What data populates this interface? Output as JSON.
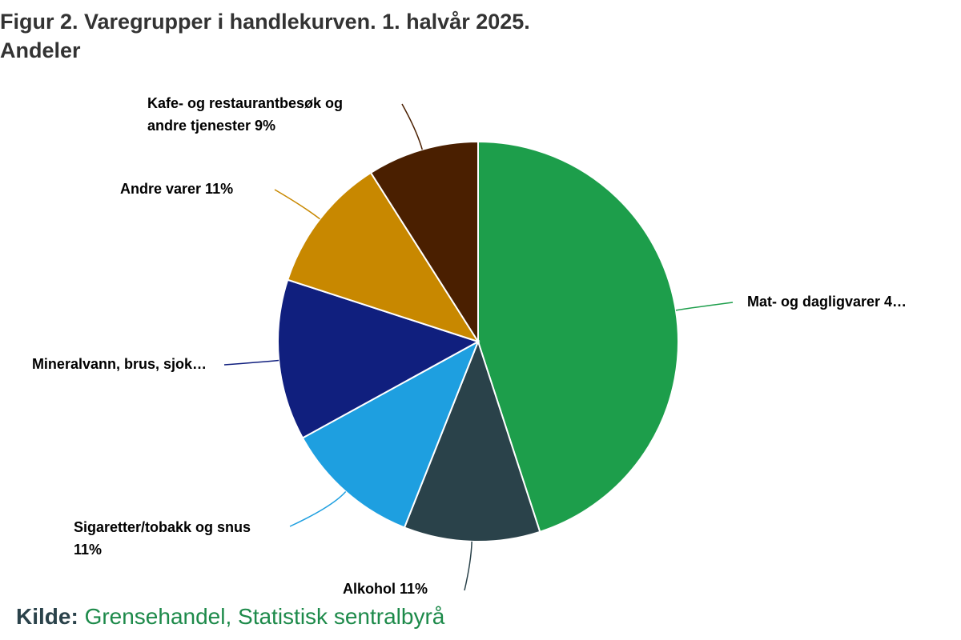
{
  "chart_data": {
    "type": "pie",
    "title": [
      "Figur 2. Varegrupper i handlekurven. 1. halvår 2025.",
      "Andeler"
    ],
    "labels": [
      [
        "Mat- og dagligvarer 4…"
      ],
      [
        "Alkohol 11%"
      ],
      [
        "Sigaretter/tobakk og snus",
        "11%"
      ],
      [
        "Mineralvann, brus, sjok…"
      ],
      [
        "Andre varer 11%"
      ],
      [
        "Kafe- og restaurantbesøk og",
        "andre tjenester 9%"
      ]
    ],
    "values": [
      45,
      11,
      11,
      13,
      11,
      9
    ],
    "colors": [
      "#1d9e4b",
      "#2a424a",
      "#1e9fe0",
      "#101f7e",
      "#c88800",
      "#4a1f00"
    ],
    "source_label": "Kilde:",
    "source": "Grensehandel, Statistisk sentralbyrå"
  }
}
